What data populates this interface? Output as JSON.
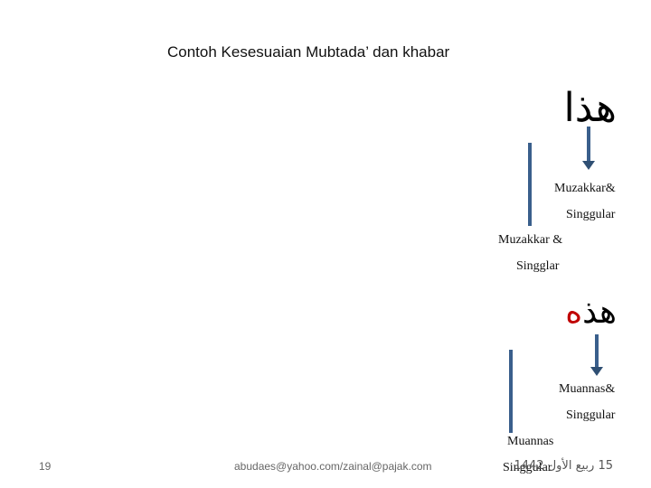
{
  "slide": {
    "title": "Contoh Kesesuaian Mubtada’ dan khabar",
    "example1": {
      "arabic": "هذا",
      "label1_line1": "Muzakkar&",
      "label1_line2": "Singgular",
      "label2_line1": "Muzakkar &",
      "label2_line2": "Singglar"
    },
    "example2": {
      "arabic_base": "هذ",
      "arabic_ending": "ه",
      "label1_line1": "Muannas&",
      "label1_line2": "Singgular",
      "label2_line1": "Muannas",
      "label2_line2": "Singgular"
    }
  },
  "footer": {
    "page_number": "19",
    "email": "abudaes@yahoo.com/zainal@pajak.com",
    "date": "15 ربيع الأول 1442"
  },
  "colors": {
    "arrow": "#3a5f8c",
    "highlight": "#c00000"
  }
}
